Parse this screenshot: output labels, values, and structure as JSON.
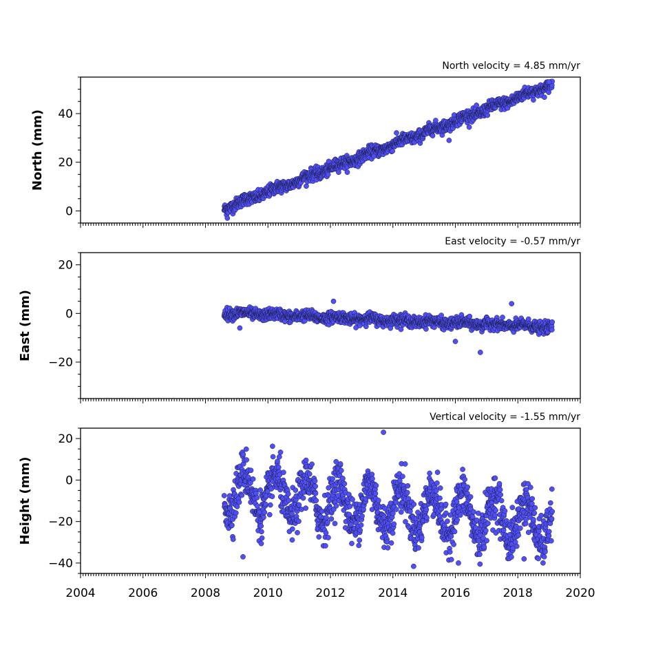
{
  "chart_data": [
    {
      "type": "scatter",
      "title": "North velocity = 4.85 mm/yr",
      "ylabel": "North (mm)",
      "xlim": [
        2004,
        2020
      ],
      "ylim": [
        -5,
        55
      ],
      "yticks": [
        "0",
        "20",
        "40"
      ],
      "ytick_values": [
        0,
        20,
        40
      ],
      "color": "#4f4ff5",
      "series": [
        {
          "x_start": 2008.6,
          "x_end": 2019.1,
          "trend": {
            "slope": 4.85,
            "y_at_start": 1.0
          },
          "noise_sd": 1.2,
          "seasonal_amp": 0.6,
          "outliers": [
            [
              2008.7,
              -3
            ],
            [
              2015.8,
              29
            ],
            [
              2019.0,
              53
            ]
          ]
        }
      ]
    },
    {
      "type": "scatter",
      "title": "East velocity = -0.57 mm/yr",
      "ylabel": "East (mm)",
      "xlim": [
        2004,
        2020
      ],
      "ylim": [
        -35,
        25
      ],
      "yticks": [
        "20",
        "0",
        "−20"
      ],
      "ytick_values": [
        20,
        0,
        -20
      ],
      "color": "#4f4ff5",
      "series": [
        {
          "x_start": 2008.6,
          "x_end": 2019.1,
          "trend": {
            "slope": -0.57,
            "y_at_start": 0.3
          },
          "noise_sd": 1.1,
          "seasonal_amp": 0.5,
          "outliers": [
            [
              2009.1,
              -6
            ],
            [
              2012.1,
              5
            ],
            [
              2016.0,
              -11.5
            ],
            [
              2016.8,
              -16
            ],
            [
              2017.8,
              4
            ]
          ]
        }
      ]
    },
    {
      "type": "scatter",
      "title": "Vertical velocity = -1.55 mm/yr",
      "ylabel": "Height (mm)",
      "xlabel_ticks": [
        "2004",
        "2006",
        "2008",
        "2010",
        "2012",
        "2014",
        "2016",
        "2018",
        "2020"
      ],
      "xtick_values": [
        2004,
        2006,
        2008,
        2010,
        2012,
        2014,
        2016,
        2018,
        2020
      ],
      "xlim": [
        2004,
        2020
      ],
      "ylim": [
        -45,
        25
      ],
      "yticks": [
        "20",
        "0",
        "−20",
        "−40"
      ],
      "ytick_values": [
        20,
        0,
        -20,
        -40
      ],
      "color": "#4f4ff5",
      "series": [
        {
          "x_start": 2008.6,
          "x_end": 2019.1,
          "trend": {
            "slope": -1.55,
            "y_at_start": -5
          },
          "noise_sd": 5.5,
          "seasonal_amp": 10,
          "outliers": [
            [
              2013.7,
              23
            ],
            [
              2009.2,
              -37
            ],
            [
              2016.1,
              -40
            ],
            [
              2018.2,
              -38
            ]
          ]
        }
      ]
    }
  ]
}
